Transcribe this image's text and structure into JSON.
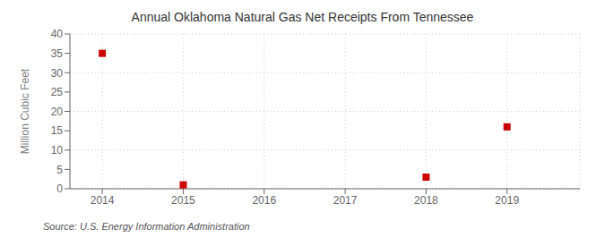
{
  "chart_data": {
    "type": "scatter",
    "title": "Annual Oklahoma Natural Gas Net Receipts From Tennessee",
    "ylabel": "Million Cubic Feet",
    "annotations": [
      "Source: U.S. Energy Information Administration"
    ],
    "x": [
      2014,
      2015,
      2018,
      2019
    ],
    "values": [
      35,
      1,
      3,
      16
    ],
    "color": "#cc0000",
    "marker": "square",
    "xlim": [
      2013.6,
      2019.9
    ],
    "ylim": [
      0,
      40
    ],
    "xticks": [
      2014,
      2015,
      2016,
      2017,
      2018,
      2019
    ],
    "yticks": [
      0,
      5,
      10,
      15,
      20,
      25,
      30,
      35,
      40
    ],
    "grid": true
  }
}
